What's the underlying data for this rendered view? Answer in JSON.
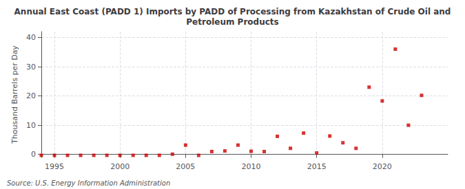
{
  "chart_data": {
    "type": "scatter",
    "title": "Annual East Coast (PADD 1) Imports by PADD of Processing from Kazakhstan of Crude Oil and\nPetroleum Products",
    "ylabel": "Thousand Barrels per Day",
    "annotations": [
      "Source: U.S. Energy Information Administration"
    ],
    "x": [
      1994,
      1995,
      1996,
      1997,
      1998,
      1999,
      2000,
      2001,
      2002,
      2003,
      2004,
      2005,
      2006,
      2007,
      2008,
      2009,
      2010,
      2011,
      2012,
      2013,
      2014,
      2015,
      2016,
      2017,
      2018,
      2019,
      2020,
      2021,
      2022,
      2023
    ],
    "values": [
      -0.3,
      -0.3,
      -0.3,
      -0.3,
      -0.3,
      -0.3,
      -0.3,
      -0.3,
      -0.3,
      -0.3,
      0.1,
      3.2,
      -0.3,
      1.0,
      1.2,
      3.2,
      1.1,
      1.0,
      6.2,
      2.1,
      7.3,
      0.5,
      6.3,
      4.0,
      2.1,
      23.0,
      18.3,
      36.0,
      10.0,
      20.2
    ],
    "color": "#cc0000",
    "marker": "square",
    "xlim": [
      1994,
      2025
    ],
    "xticks": [
      1995,
      2000,
      2005,
      2010,
      2015,
      2020
    ],
    "ylim": [
      -1,
      42
    ],
    "yticks": [
      0,
      10,
      20,
      30,
      40
    ],
    "grid": true
  }
}
